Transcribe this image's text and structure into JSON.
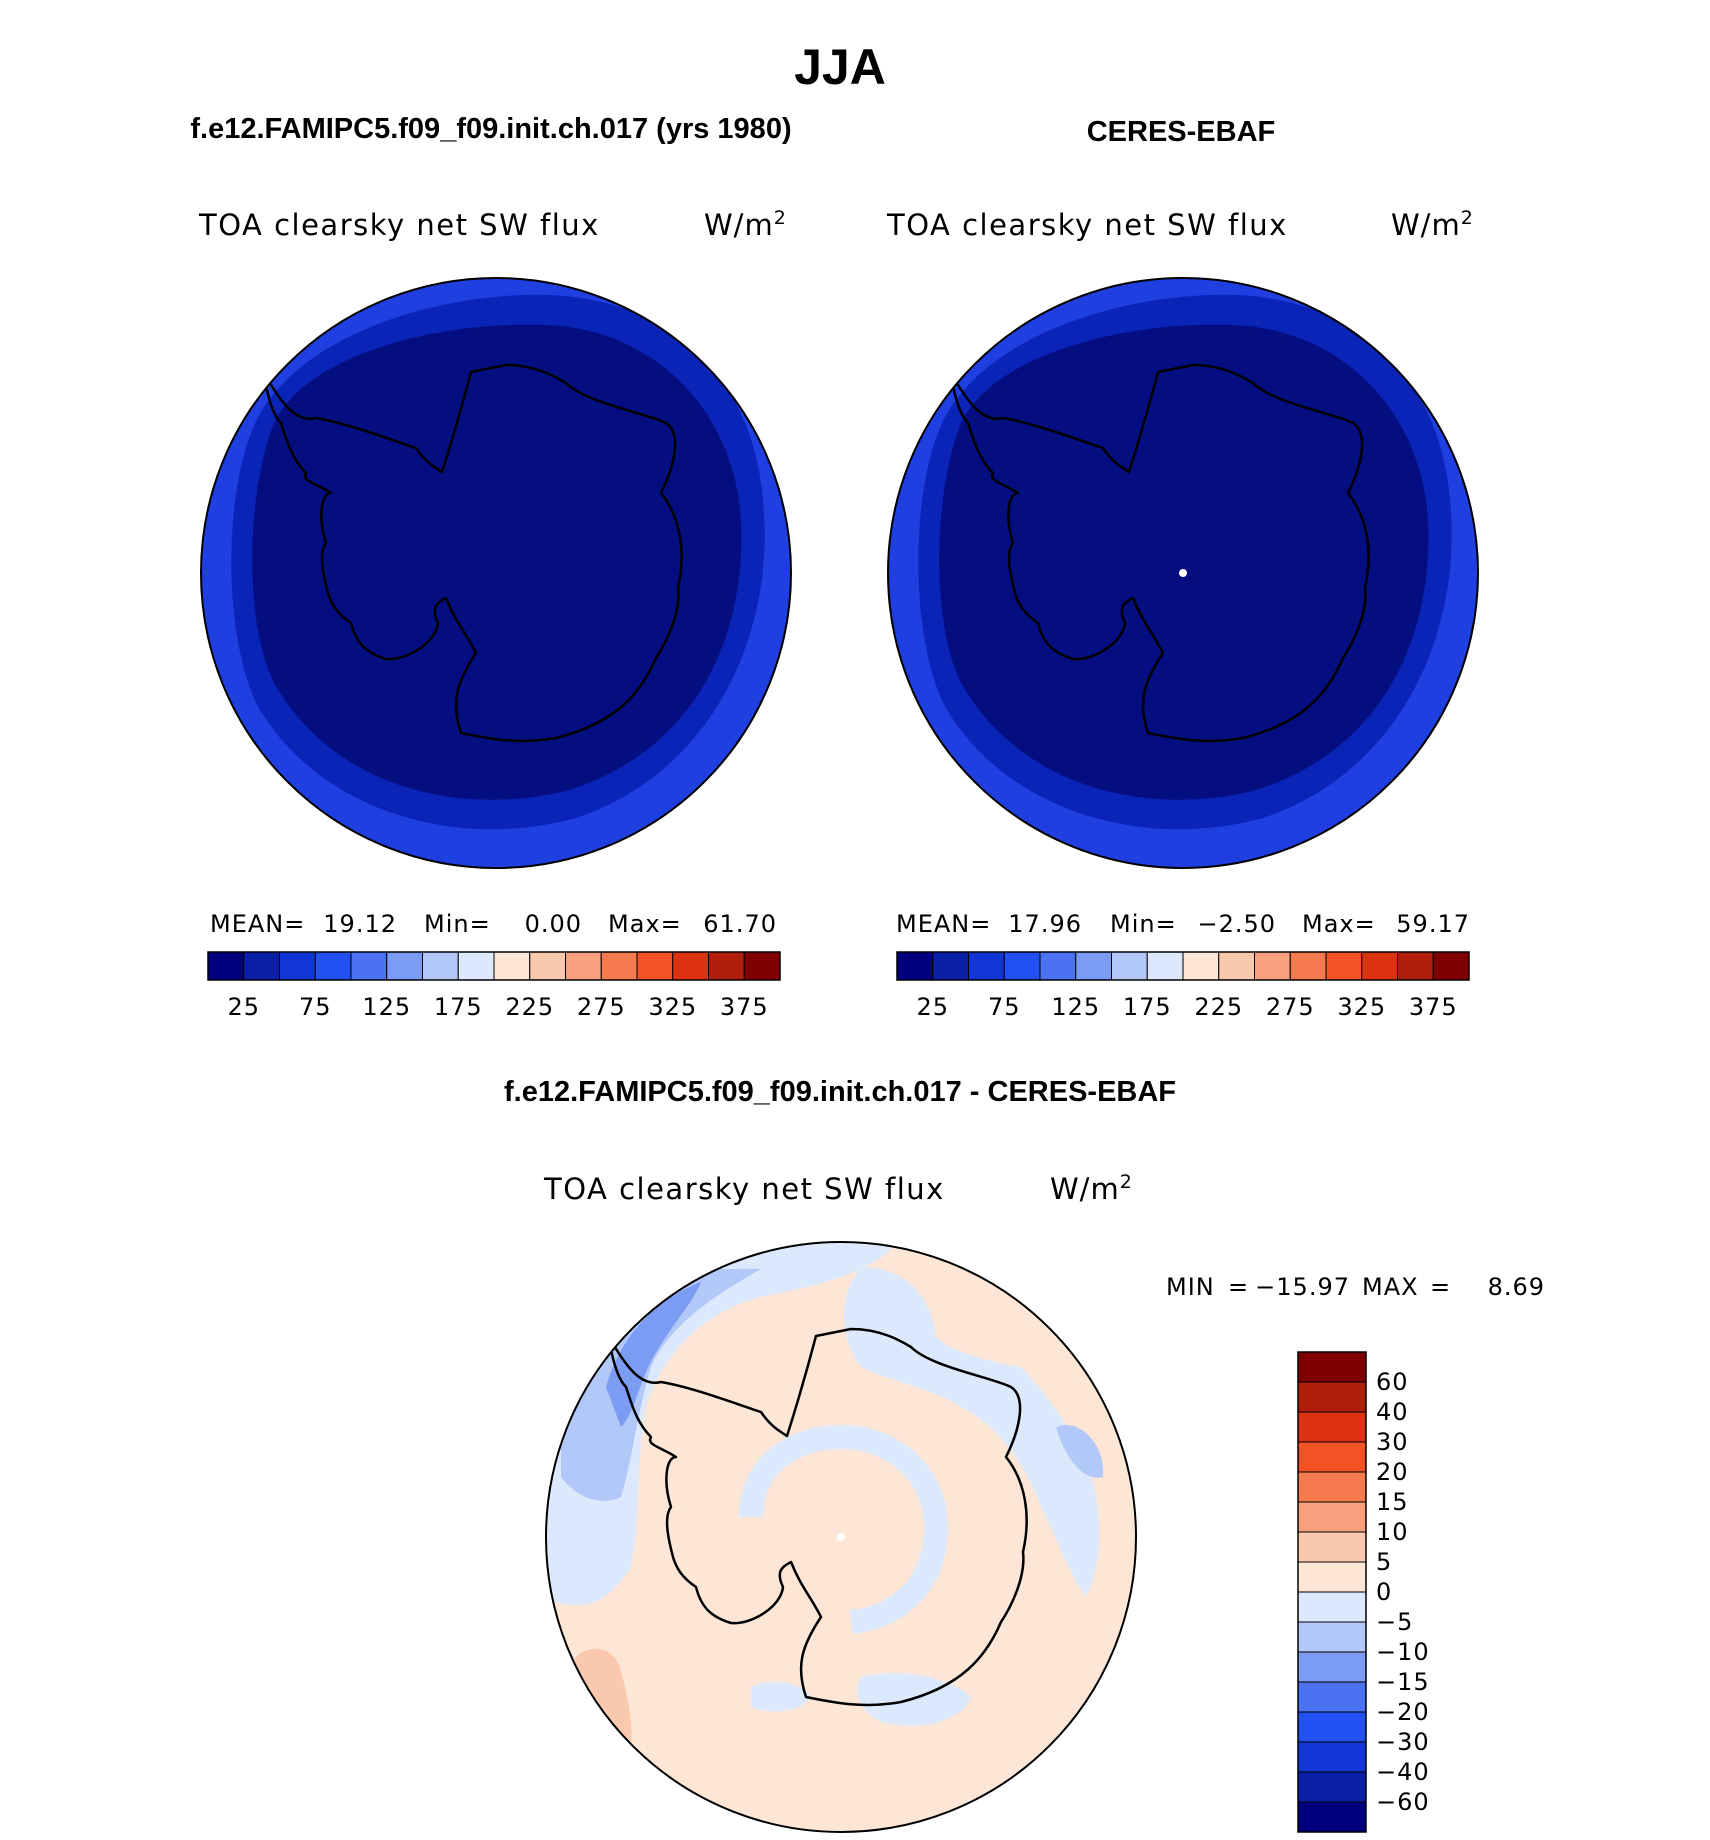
{
  "title": "JJA",
  "panels": [
    {
      "id": "model",
      "case_title": "f.e12.FAMIPC5.f09_f09.init.ch.017 (yrs 1980)",
      "variable": "TOA clearsky net SW flux",
      "units": "W/m",
      "units_sup": "2",
      "stats": [
        {
          "label": "MEAN=",
          "value": "19.12"
        },
        {
          "label": "Min=",
          "value": "0.00"
        },
        {
          "label": "Max=",
          "value": "61.70"
        }
      ],
      "ring_fill": "#1f3fe0",
      "shelf_fill": "#0a24b8",
      "interior_fill": "#040e80",
      "show_pole_dot": false
    },
    {
      "id": "obs",
      "case_title": "CERES-EBAF",
      "variable": "TOA clearsky net SW flux",
      "units": "W/m",
      "units_sup": "2",
      "stats": [
        {
          "label": "MEAN=",
          "value": "17.96"
        },
        {
          "label": "Min=",
          "value": "−2.50"
        },
        {
          "label": "Max=",
          "value": "59.17"
        }
      ],
      "ring_fill": "#1f3fe0",
      "shelf_fill": "#0a24b8",
      "interior_fill": "#040e80",
      "show_pole_dot": true
    }
  ],
  "top_colorbar": {
    "colors": [
      "#00007f",
      "#0a1fa8",
      "#1236d6",
      "#2350f2",
      "#4a72f2",
      "#7b9cf2",
      "#b2c8f8",
      "#dce9fc",
      "#fde6d6",
      "#fac8ad",
      "#f7a07d",
      "#f57a4d",
      "#f25224",
      "#dc3212",
      "#b01e0c",
      "#7f0000"
    ],
    "tick_labels": [
      "25",
      "75",
      "125",
      "175",
      "225",
      "275",
      "325",
      "375"
    ]
  },
  "diff_panel": {
    "title": "f.e12.FAMIPC5.f09_f09.init.ch.017 - CERES-EBAF",
    "variable": "TOA clearsky net SW flux",
    "units": "W/m",
    "units_sup": "2",
    "min_label": "MIN",
    "min_value": "−15.97",
    "max_label": "MAX",
    "max_value": "8.69",
    "background_fill": "#fde6d6"
  },
  "diff_colorbar": {
    "colors_top_to_bottom": [
      "#7f0000",
      "#b01e0c",
      "#dc3212",
      "#f25224",
      "#f57a4d",
      "#f7a07d",
      "#fac8ad",
      "#fde6d6",
      "#dce9fc",
      "#b2c8f8",
      "#7b9cf2",
      "#4a72f2",
      "#2350f2",
      "#1236d6",
      "#0a1fa8",
      "#00007f"
    ],
    "tick_labels_top_to_bottom": [
      "60",
      "40",
      "30",
      "20",
      "15",
      "10",
      "5",
      "0",
      "−5",
      "−10",
      "−15",
      "−20",
      "−30",
      "−40",
      "−60"
    ]
  }
}
